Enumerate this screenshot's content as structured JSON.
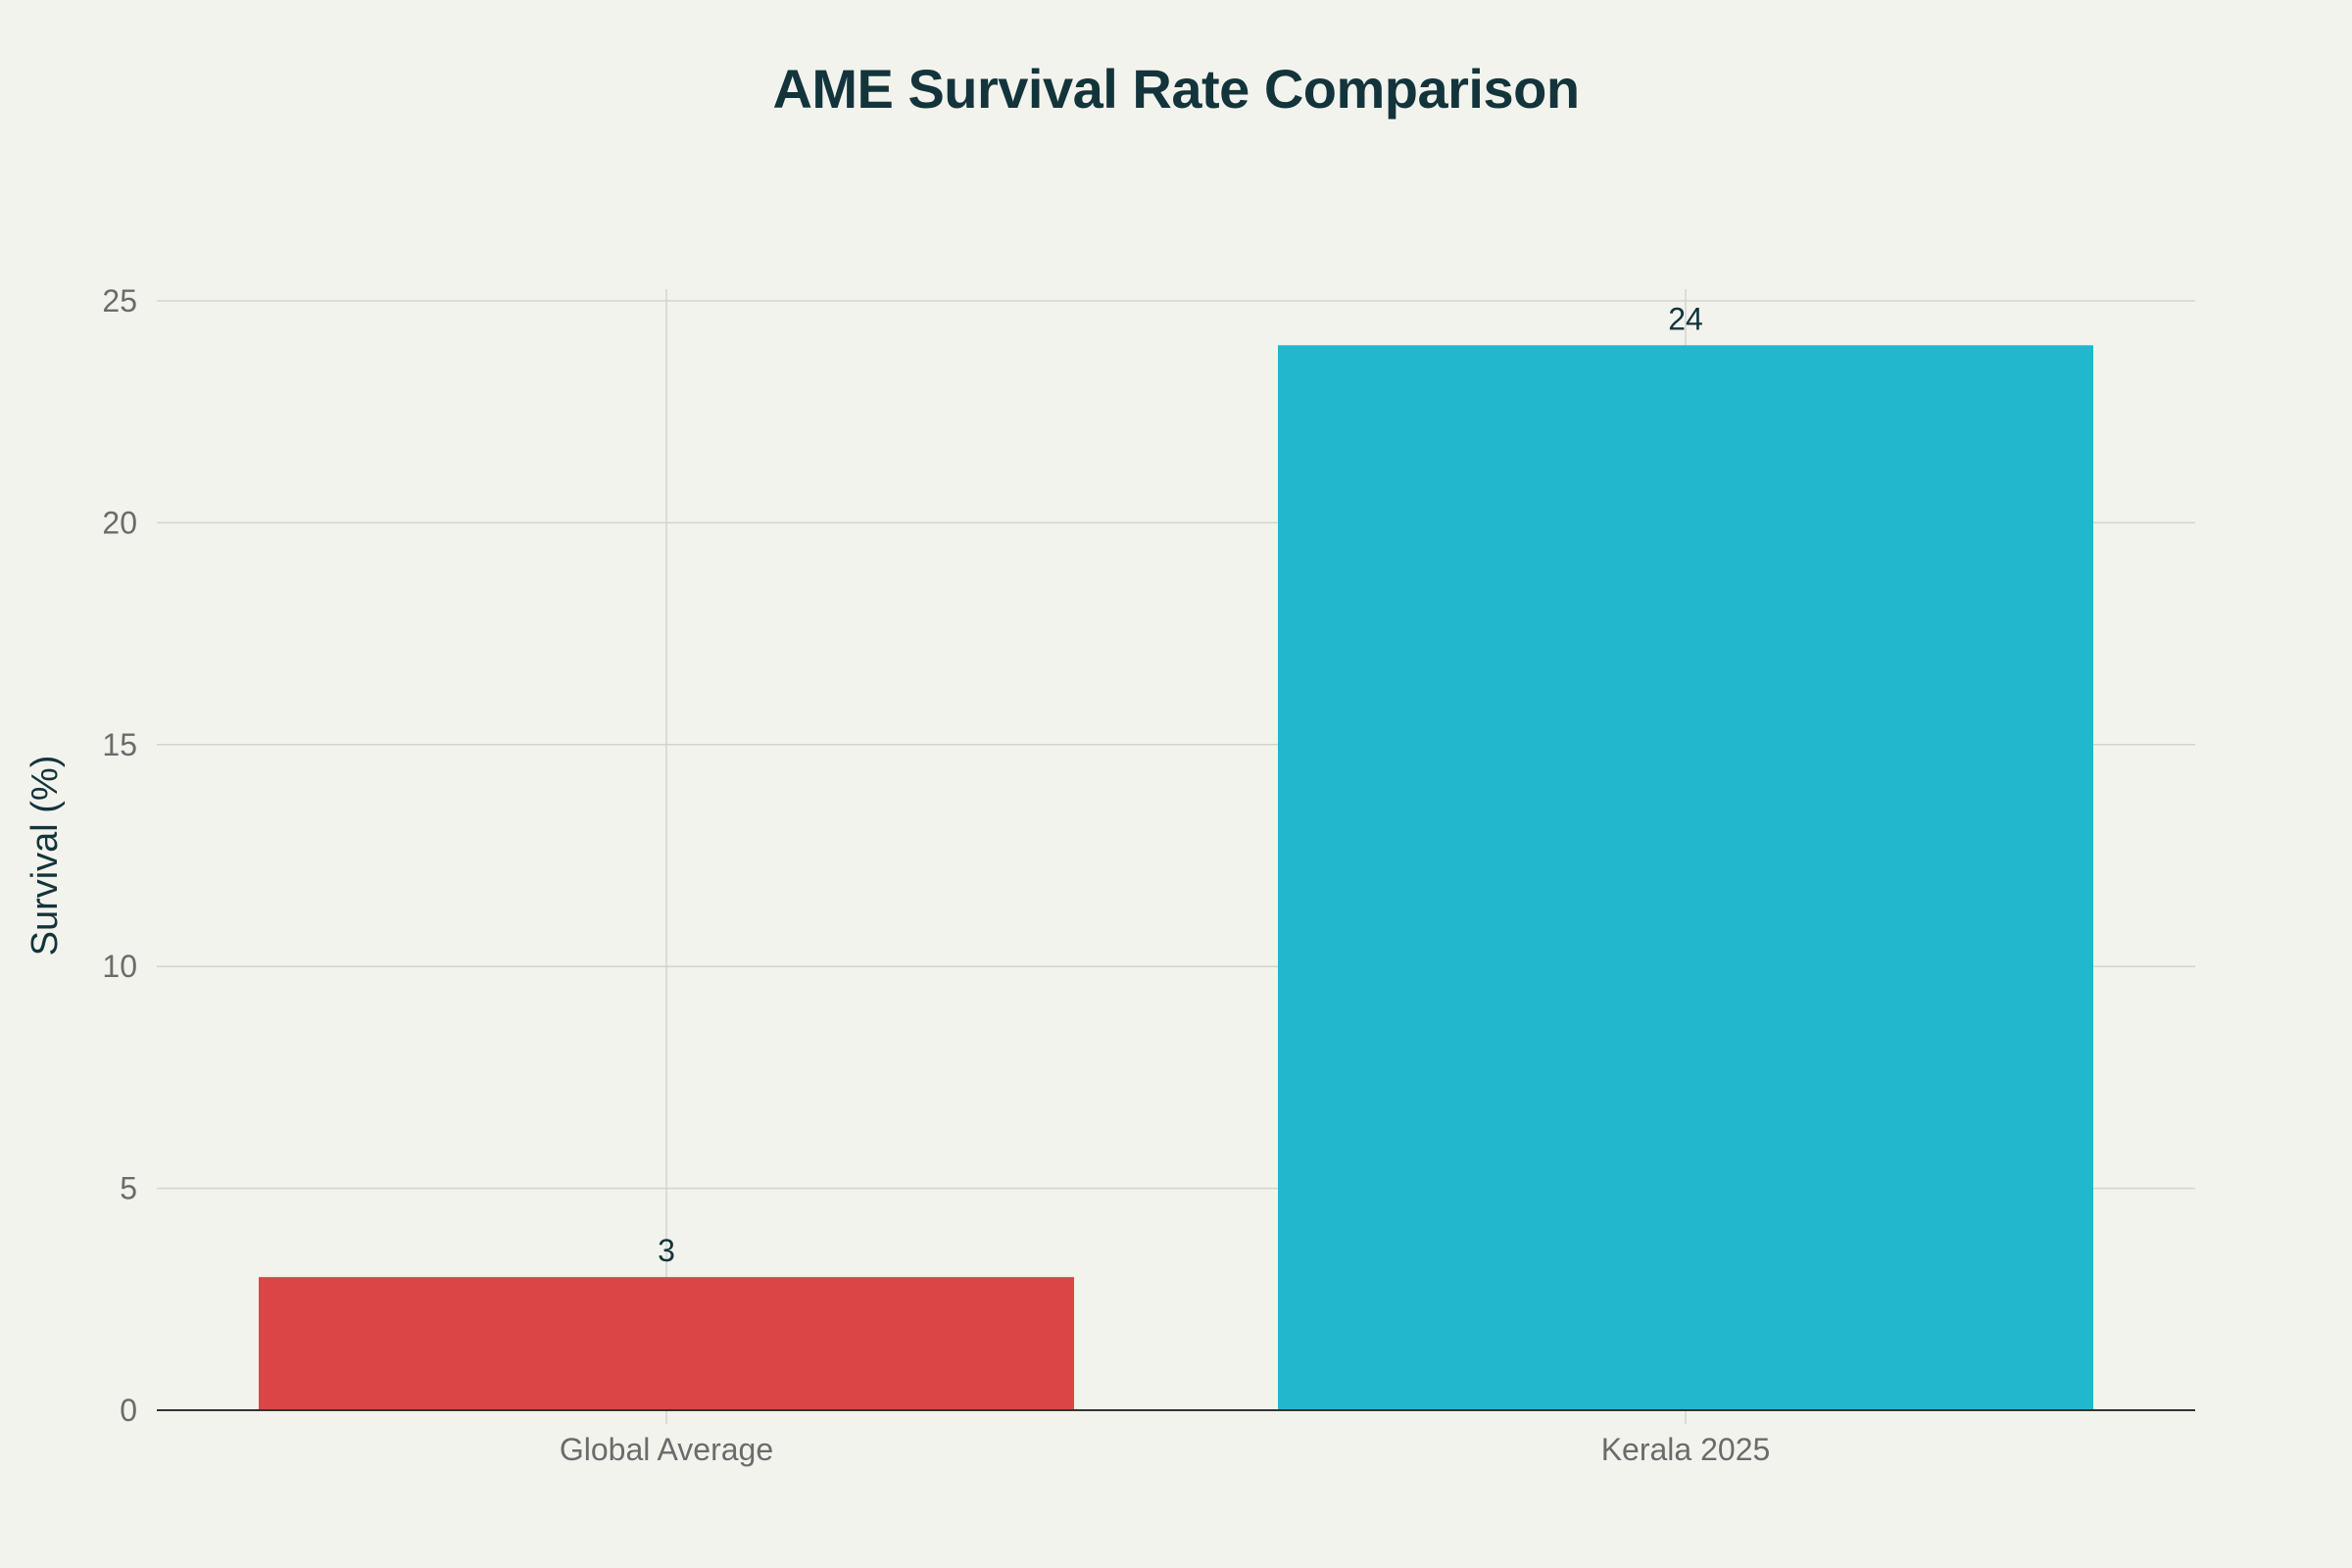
{
  "chart_data": {
    "type": "bar",
    "title": "AME Survival Rate Comparison",
    "xlabel": "",
    "ylabel": "Survival (%)",
    "categories": [
      "Global Average",
      "Kerala 2025"
    ],
    "values": [
      3,
      24
    ],
    "data_labels": [
      "3",
      "24"
    ],
    "colors": [
      "#db4545",
      "#21b7cc"
    ],
    "ylim": [
      0,
      25
    ],
    "yticks": [
      0,
      5,
      10,
      15,
      20,
      25
    ],
    "grid": true,
    "legend": "none"
  }
}
